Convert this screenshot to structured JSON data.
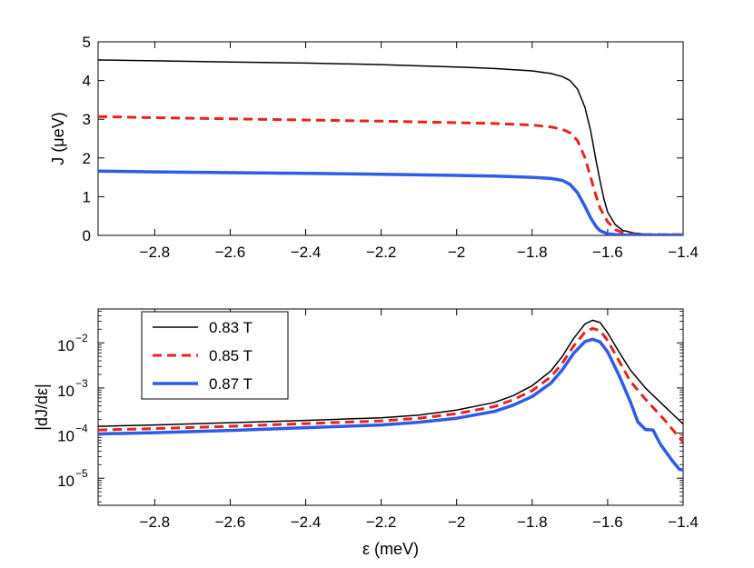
{
  "chart_data": [
    {
      "type": "line",
      "title": "",
      "xlabel": "",
      "ylabel": "J (μeV)",
      "xlim": [
        -2.95,
        -1.4
      ],
      "ylim": [
        0,
        5
      ],
      "yscale": "linear",
      "xticks": [
        -2.8,
        -2.6,
        -2.4,
        -2.2,
        -2,
        -1.8,
        -1.6,
        -1.4
      ],
      "xtick_labels": [
        "−2.8",
        "−2.6",
        "−2.4",
        "−2.2",
        "−2",
        "−1.8",
        "−1.6",
        "−1.4"
      ],
      "yticks": [
        0,
        1,
        2,
        3,
        4,
        5
      ],
      "ytick_labels": [
        "0",
        "1",
        "2",
        "3",
        "4",
        "5"
      ],
      "grid": false,
      "series": [
        {
          "name": "0.83 T",
          "color": "#000000",
          "style": "solid",
          "width": 1.5,
          "points": [
            [
              -2.95,
              4.53
            ],
            [
              -2.8,
              4.51
            ],
            [
              -2.6,
              4.48
            ],
            [
              -2.4,
              4.45
            ],
            [
              -2.2,
              4.41
            ],
            [
              -2.0,
              4.35
            ],
            [
              -1.9,
              4.31
            ],
            [
              -1.8,
              4.25
            ],
            [
              -1.75,
              4.18
            ],
            [
              -1.72,
              4.1
            ],
            [
              -1.7,
              4.0
            ],
            [
              -1.68,
              3.78
            ],
            [
              -1.66,
              3.3
            ],
            [
              -1.645,
              2.7
            ],
            [
              -1.63,
              1.9
            ],
            [
              -1.62,
              1.4
            ],
            [
              -1.61,
              0.95
            ],
            [
              -1.6,
              0.6
            ],
            [
              -1.58,
              0.28
            ],
            [
              -1.56,
              0.13
            ],
            [
              -1.53,
              0.06
            ],
            [
              -1.5,
              0.03
            ],
            [
              -1.45,
              0.02
            ],
            [
              -1.4,
              0.02
            ]
          ]
        },
        {
          "name": "0.85 T",
          "color": "#e8231c",
          "style": "dashed",
          "width": 3,
          "points": [
            [
              -2.95,
              3.07
            ],
            [
              -2.8,
              3.04
            ],
            [
              -2.6,
              3.01
            ],
            [
              -2.4,
              2.98
            ],
            [
              -2.2,
              2.95
            ],
            [
              -2.0,
              2.91
            ],
            [
              -1.9,
              2.89
            ],
            [
              -1.8,
              2.85
            ],
            [
              -1.75,
              2.8
            ],
            [
              -1.72,
              2.74
            ],
            [
              -1.7,
              2.65
            ],
            [
              -1.68,
              2.45
            ],
            [
              -1.66,
              2.0
            ],
            [
              -1.645,
              1.5
            ],
            [
              -1.63,
              1.0
            ],
            [
              -1.62,
              0.7
            ],
            [
              -1.6,
              0.35
            ],
            [
              -1.58,
              0.15
            ],
            [
              -1.56,
              0.07
            ],
            [
              -1.53,
              0.03
            ],
            [
              -1.5,
              0.02
            ],
            [
              -1.45,
              0.02
            ],
            [
              -1.4,
              0.02
            ]
          ]
        },
        {
          "name": "0.87 T",
          "color": "#2f5be6",
          "style": "solid",
          "width": 3.5,
          "points": [
            [
              -2.95,
              1.66
            ],
            [
              -2.8,
              1.64
            ],
            [
              -2.6,
              1.62
            ],
            [
              -2.4,
              1.6
            ],
            [
              -2.2,
              1.58
            ],
            [
              -2.0,
              1.55
            ],
            [
              -1.9,
              1.53
            ],
            [
              -1.8,
              1.5
            ],
            [
              -1.75,
              1.47
            ],
            [
              -1.72,
              1.42
            ],
            [
              -1.7,
              1.32
            ],
            [
              -1.68,
              1.1
            ],
            [
              -1.66,
              0.75
            ],
            [
              -1.645,
              0.45
            ],
            [
              -1.63,
              0.22
            ],
            [
              -1.62,
              0.12
            ],
            [
              -1.6,
              0.04
            ],
            [
              -1.58,
              0.02
            ],
            [
              -1.55,
              0.01
            ],
            [
              -1.4,
              0.01
            ]
          ]
        }
      ]
    },
    {
      "type": "line",
      "title": "",
      "xlabel": "ε (meV)",
      "ylabel": "|dJ/dε|",
      "xlim": [
        -2.95,
        -1.4
      ],
      "ylim_log10": [
        -5.6,
        -1.25
      ],
      "yscale": "log",
      "xticks": [
        -2.8,
        -2.6,
        -2.4,
        -2.2,
        -2,
        -1.8,
        -1.6,
        -1.4
      ],
      "xtick_labels": [
        "−2.8",
        "−2.6",
        "−2.4",
        "−2.2",
        "−2",
        "−1.8",
        "−1.6",
        "−1.4"
      ],
      "yticks_log10": [
        -5,
        -4,
        -3,
        -2
      ],
      "ytick_bases": [
        "10",
        "10",
        "10",
        "10"
      ],
      "ytick_exponents": [
        "−5",
        "−4",
        "−3",
        "−2"
      ],
      "grid": false,
      "legend": {
        "position": "top-left",
        "entries": [
          "0.83 T",
          "0.85 T",
          "0.87 T"
        ]
      },
      "series": [
        {
          "name": "0.83 T",
          "color": "#000000",
          "style": "solid",
          "width": 1.5,
          "log10_points": [
            [
              -2.95,
              -3.85
            ],
            [
              -2.8,
              -3.82
            ],
            [
              -2.6,
              -3.77
            ],
            [
              -2.4,
              -3.72
            ],
            [
              -2.2,
              -3.66
            ],
            [
              -2.1,
              -3.6
            ],
            [
              -2.0,
              -3.49
            ],
            [
              -1.9,
              -3.32
            ],
            [
              -1.85,
              -3.17
            ],
            [
              -1.8,
              -2.95
            ],
            [
              -1.75,
              -2.62
            ],
            [
              -1.72,
              -2.3
            ],
            [
              -1.69,
              -1.9
            ],
            [
              -1.66,
              -1.58
            ],
            [
              -1.64,
              -1.5
            ],
            [
              -1.62,
              -1.55
            ],
            [
              -1.6,
              -1.78
            ],
            [
              -1.57,
              -2.2
            ],
            [
              -1.54,
              -2.6
            ],
            [
              -1.5,
              -3.0
            ],
            [
              -1.45,
              -3.4
            ],
            [
              -1.4,
              -3.8
            ]
          ]
        },
        {
          "name": "0.85 T",
          "color": "#e8231c",
          "style": "dashed",
          "width": 3,
          "log10_points": [
            [
              -2.95,
              -3.93
            ],
            [
              -2.8,
              -3.9
            ],
            [
              -2.6,
              -3.85
            ],
            [
              -2.4,
              -3.79
            ],
            [
              -2.2,
              -3.73
            ],
            [
              -2.1,
              -3.67
            ],
            [
              -2.0,
              -3.57
            ],
            [
              -1.9,
              -3.41
            ],
            [
              -1.85,
              -3.26
            ],
            [
              -1.8,
              -3.06
            ],
            [
              -1.75,
              -2.75
            ],
            [
              -1.72,
              -2.45
            ],
            [
              -1.69,
              -2.07
            ],
            [
              -1.66,
              -1.76
            ],
            [
              -1.64,
              -1.68
            ],
            [
              -1.62,
              -1.73
            ],
            [
              -1.6,
              -1.95
            ],
            [
              -1.57,
              -2.4
            ],
            [
              -1.54,
              -2.85
            ],
            [
              -1.5,
              -3.25
            ],
            [
              -1.45,
              -3.7
            ],
            [
              -1.4,
              -4.2
            ]
          ]
        },
        {
          "name": "0.87 T",
          "color": "#2f5be6",
          "style": "solid",
          "width": 3.5,
          "log10_points": [
            [
              -2.95,
              -4.02
            ],
            [
              -2.8,
              -3.99
            ],
            [
              -2.6,
              -3.94
            ],
            [
              -2.4,
              -3.88
            ],
            [
              -2.2,
              -3.82
            ],
            [
              -2.1,
              -3.76
            ],
            [
              -2.0,
              -3.67
            ],
            [
              -1.9,
              -3.52
            ],
            [
              -1.85,
              -3.38
            ],
            [
              -1.8,
              -3.19
            ],
            [
              -1.75,
              -2.89
            ],
            [
              -1.72,
              -2.6
            ],
            [
              -1.69,
              -2.23
            ],
            [
              -1.66,
              -1.97
            ],
            [
              -1.64,
              -1.92
            ],
            [
              -1.62,
              -1.98
            ],
            [
              -1.6,
              -2.2
            ],
            [
              -1.57,
              -2.72
            ],
            [
              -1.54,
              -3.3
            ],
            [
              -1.52,
              -3.75
            ],
            [
              -1.5,
              -3.92
            ],
            [
              -1.48,
              -3.93
            ],
            [
              -1.46,
              -4.25
            ],
            [
              -1.43,
              -4.6
            ],
            [
              -1.41,
              -4.8
            ],
            [
              -1.4,
              -4.82
            ]
          ]
        }
      ]
    }
  ]
}
